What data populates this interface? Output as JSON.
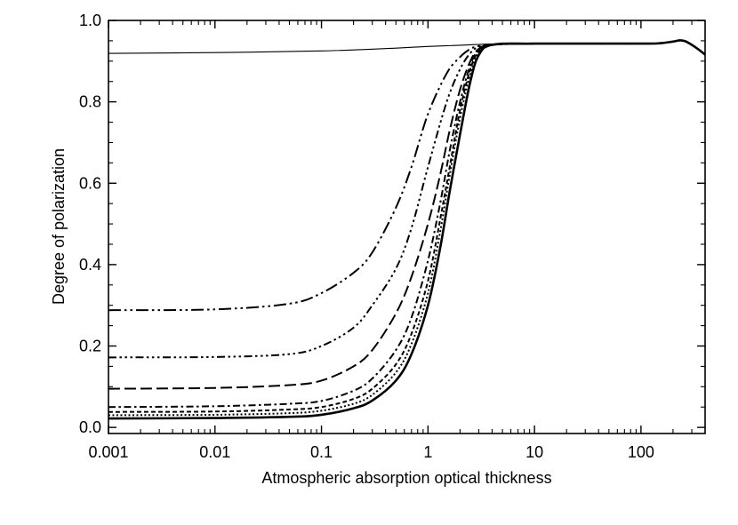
{
  "chart_data": {
    "type": "line",
    "title": "",
    "xlabel": "Atmospheric absorption optical thickness",
    "ylabel": "Degree of polarization",
    "xscale": "log",
    "xlim": [
      0.001,
      400
    ],
    "ylim": [
      -0.015,
      1.0
    ],
    "grid": false,
    "legend": "none",
    "x_ticks": [
      {
        "value": 0.001,
        "label": "0.001"
      },
      {
        "value": 0.01,
        "label": "0.01"
      },
      {
        "value": 0.1,
        "label": "0.1"
      },
      {
        "value": 1,
        "label": "1"
      },
      {
        "value": 10,
        "label": "10"
      },
      {
        "value": 100,
        "label": "100"
      }
    ],
    "y_ticks": [
      {
        "value": 0.0,
        "label": "0.0"
      },
      {
        "value": 0.2,
        "label": "0.2"
      },
      {
        "value": 0.4,
        "label": "0.4"
      },
      {
        "value": 0.6,
        "label": "0.6"
      },
      {
        "value": 0.8,
        "label": "0.8"
      },
      {
        "value": 1.0,
        "label": "1.0"
      }
    ],
    "series": [
      {
        "name": "thin solid",
        "style": "thin-solid",
        "x": [
          0.001,
          0.01,
          0.1,
          0.5,
          1,
          2,
          3,
          4,
          10,
          30,
          100,
          150,
          200,
          230,
          260,
          300,
          350,
          400
        ],
        "y": [
          0.919,
          0.921,
          0.925,
          0.932,
          0.936,
          0.939,
          0.941,
          0.942,
          0.943,
          0.943,
          0.943,
          0.944,
          0.948,
          0.951,
          0.949,
          0.94,
          0.928,
          0.916
        ]
      },
      {
        "name": "long dash double dot",
        "style": "dash-dot-dot",
        "x": [
          0.001,
          0.01,
          0.05,
          0.1,
          0.2,
          0.3,
          0.5,
          0.7,
          1,
          1.5,
          2,
          2.5,
          3,
          4,
          10,
          100,
          150,
          200,
          230,
          260,
          300,
          350,
          400
        ],
        "y": [
          0.288,
          0.29,
          0.304,
          0.33,
          0.38,
          0.43,
          0.54,
          0.64,
          0.77,
          0.87,
          0.91,
          0.93,
          0.937,
          0.941,
          0.943,
          0.943,
          0.944,
          0.948,
          0.951,
          0.949,
          0.94,
          0.928,
          0.916
        ]
      },
      {
        "name": "dash triple dot",
        "style": "dash-dot-dot-dot",
        "x": [
          0.001,
          0.01,
          0.05,
          0.1,
          0.2,
          0.3,
          0.5,
          0.7,
          1,
          1.5,
          2,
          2.5,
          3,
          4,
          10
        ],
        "y": [
          0.172,
          0.173,
          0.18,
          0.2,
          0.245,
          0.3,
          0.39,
          0.49,
          0.64,
          0.8,
          0.88,
          0.92,
          0.935,
          0.941,
          0.943
        ]
      },
      {
        "name": "long dash",
        "style": "long-dash",
        "x": [
          0.001,
          0.01,
          0.05,
          0.1,
          0.2,
          0.3,
          0.5,
          0.7,
          1,
          1.3,
          1.6,
          2,
          2.5,
          3,
          4,
          10
        ],
        "y": [
          0.095,
          0.097,
          0.104,
          0.115,
          0.15,
          0.19,
          0.28,
          0.37,
          0.5,
          0.62,
          0.73,
          0.83,
          0.9,
          0.93,
          0.941,
          0.943
        ]
      },
      {
        "name": "dash dot",
        "style": "dash-dot",
        "x": [
          0.001,
          0.01,
          0.05,
          0.1,
          0.2,
          0.3,
          0.5,
          0.7,
          1,
          1.3,
          1.6,
          2,
          2.5,
          3,
          4,
          10
        ],
        "y": [
          0.05,
          0.052,
          0.058,
          0.065,
          0.09,
          0.12,
          0.19,
          0.27,
          0.41,
          0.55,
          0.68,
          0.8,
          0.89,
          0.928,
          0.94,
          0.943
        ]
      },
      {
        "name": "dash",
        "style": "short-dash",
        "x": [
          0.001,
          0.01,
          0.05,
          0.1,
          0.2,
          0.3,
          0.5,
          0.7,
          1,
          1.3,
          1.6,
          2,
          2.5,
          3,
          4,
          10
        ],
        "y": [
          0.038,
          0.039,
          0.044,
          0.05,
          0.07,
          0.095,
          0.155,
          0.23,
          0.36,
          0.51,
          0.64,
          0.78,
          0.88,
          0.925,
          0.94,
          0.943
        ]
      },
      {
        "name": "dotted",
        "style": "dotted",
        "x": [
          0.001,
          0.01,
          0.05,
          0.1,
          0.2,
          0.3,
          0.5,
          0.7,
          1,
          1.3,
          1.6,
          2,
          2.5,
          3,
          4,
          10
        ],
        "y": [
          0.03,
          0.031,
          0.035,
          0.041,
          0.058,
          0.08,
          0.135,
          0.205,
          0.33,
          0.48,
          0.62,
          0.76,
          0.87,
          0.922,
          0.94,
          0.943
        ]
      },
      {
        "name": "thick solid",
        "style": "thick-solid",
        "x": [
          0.001,
          0.01,
          0.05,
          0.1,
          0.2,
          0.3,
          0.5,
          0.7,
          1,
          1.3,
          1.6,
          2,
          2.5,
          3,
          4,
          10,
          100,
          150,
          200,
          230,
          260,
          300,
          350,
          400
        ],
        "y": [
          0.022,
          0.023,
          0.026,
          0.031,
          0.047,
          0.066,
          0.115,
          0.18,
          0.3,
          0.44,
          0.58,
          0.72,
          0.85,
          0.915,
          0.94,
          0.943,
          0.943,
          0.944,
          0.948,
          0.951,
          0.949,
          0.94,
          0.928,
          0.916
        ]
      }
    ]
  }
}
